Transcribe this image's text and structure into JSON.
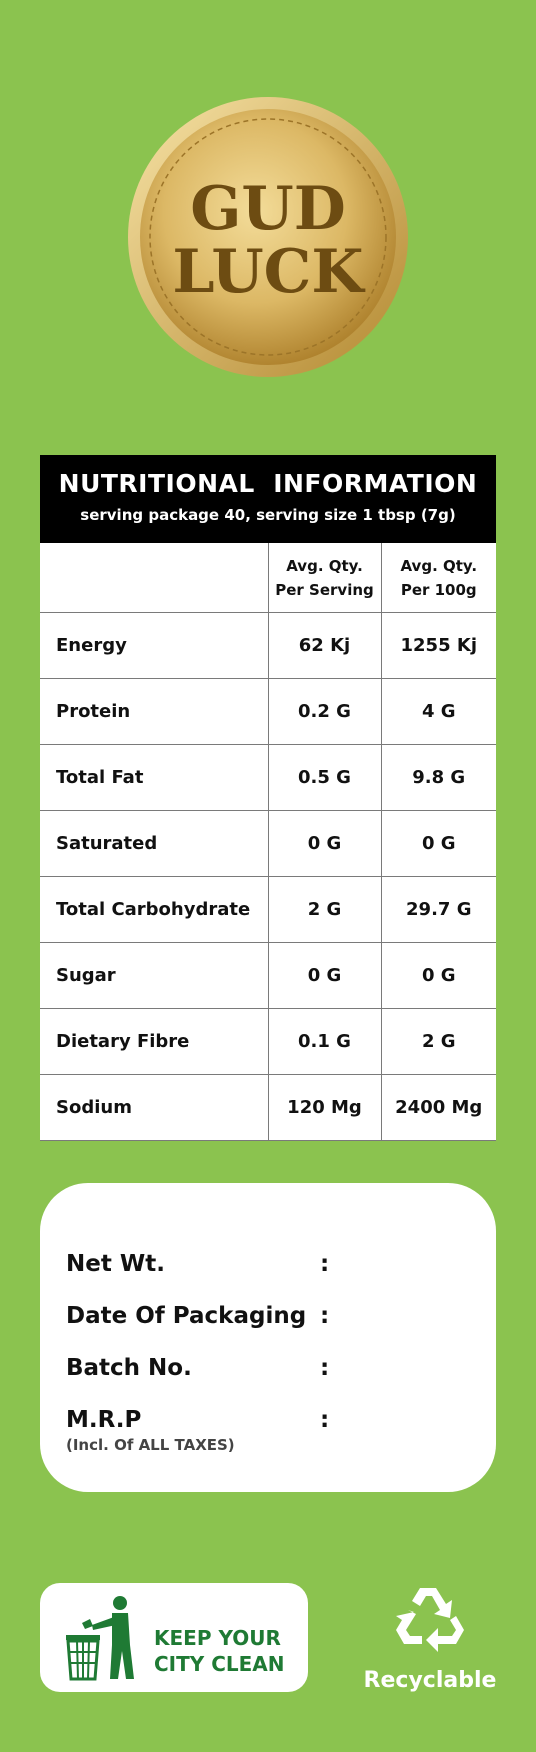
{
  "brand": {
    "line1": "GUD",
    "line2": "LUCK",
    "colors": {
      "gold_light": "#f0d58a",
      "gold_dark": "#b8892e",
      "text": "#6d4c12"
    }
  },
  "nutrition": {
    "title": "NUTRITIONAL  INFORMATION",
    "subtitle": "serving package 40, serving size 1 tbsp (7g)",
    "col1_line1": "Avg. Qty.",
    "col1_line2": "Per Serving",
    "col2_line1": "Avg. Qty.",
    "col2_line2": "Per 100g",
    "rows": [
      {
        "label": "Energy",
        "per_serving": "62 Kj",
        "per_100g": "1255 Kj"
      },
      {
        "label": "Protein",
        "per_serving": "0.2 G",
        "per_100g": "4 G"
      },
      {
        "label": "Total Fat",
        "per_serving": "0.5 G",
        "per_100g": "9.8 G"
      },
      {
        "label": "Saturated",
        "per_serving": "0 G",
        "per_100g": "0 G"
      },
      {
        "label": "Total Carbohydrate",
        "per_serving": "2 G",
        "per_100g": "29.7 G"
      },
      {
        "label": "Sugar",
        "per_serving": "0 G",
        "per_100g": "0 G"
      },
      {
        "label": "Dietary Fibre",
        "per_serving": "0.1 G",
        "per_100g": "2 G"
      },
      {
        "label": "Sodium",
        "per_serving": "120 Mg",
        "per_100g": "2400 Mg"
      }
    ]
  },
  "packing": {
    "net_wt": "Net Wt.",
    "date": "Date Of Packaging",
    "batch": "Batch No.",
    "mrp": "M.R.P",
    "mrp_note": "(Incl. Of ALL TAXES)",
    "colon": ":"
  },
  "footer": {
    "clean_line1": "KEEP YOUR",
    "clean_line2": "CITY CLEAN",
    "recyclable": "Recyclable",
    "icons": {
      "bin": "litter-bin-icon",
      "recycle": "recycle-icon"
    },
    "colors": {
      "clean_text": "#1f7a34",
      "bg": "#8bc34f"
    }
  }
}
